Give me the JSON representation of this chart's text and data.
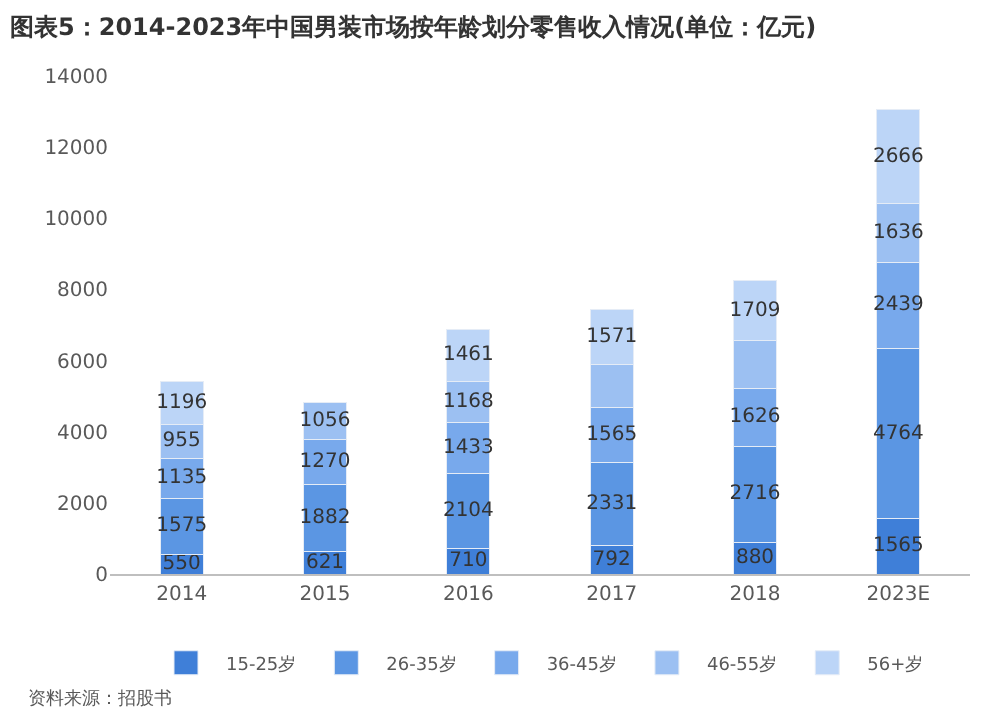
{
  "chart_data": {
    "type": "bar",
    "stacked": true,
    "title": "图表5：2014-2023年中国男装市场按年龄划分零售收入情况(单位：亿元)",
    "categories": [
      "2014",
      "2015",
      "2016",
      "2017",
      "2018",
      "2023E"
    ],
    "series": [
      {
        "name": "15-25岁",
        "color": "#3f7fd8",
        "values": [
          550,
          621,
          710,
          792,
          880,
          1565
        ]
      },
      {
        "name": "26-35岁",
        "color": "#5b96e3",
        "values": [
          1575,
          1882,
          2104,
          2331,
          2716,
          4764
        ]
      },
      {
        "name": "36-45岁",
        "color": "#78a9ec",
        "values": [
          1135,
          1270,
          1433,
          1565,
          1626,
          2439
        ]
      },
      {
        "name": "46-55岁",
        "color": "#9cc0f2",
        "values": [
          955,
          1056,
          1168,
          1190,
          1330,
          1636
        ],
        "value_labels": [
          "955",
          "1056",
          "1168",
          null,
          null,
          "1636"
        ]
      },
      {
        "name": "56+岁",
        "color": "#bcd5f7",
        "values": [
          1196,
          null,
          1461,
          1571,
          1709,
          2666
        ]
      }
    ],
    "data_labels": true,
    "ylim": [
      0,
      14000
    ],
    "yticks": [
      0,
      2000,
      4000,
      6000,
      8000,
      10000,
      12000,
      14000
    ],
    "grid": false,
    "legend": "bottom",
    "annotations": [
      "资料来源：招股书"
    ]
  }
}
